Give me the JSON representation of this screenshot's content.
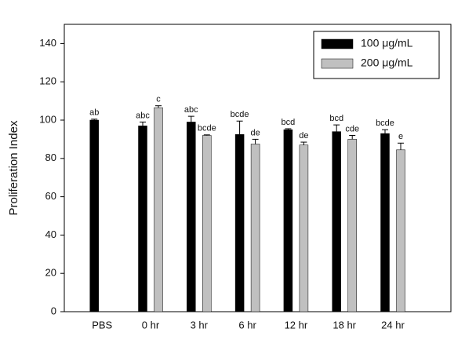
{
  "chart_data": {
    "type": "bar",
    "y_label": "Proliferation Index",
    "categories": [
      "PBS",
      "0 hr",
      "3 hr",
      "6 hr",
      "12 hr",
      "18 hr",
      "24 hr"
    ],
    "series": [
      {
        "name": "100 μg/mL",
        "color": "#000000",
        "values": [
          100,
          97,
          99,
          92.5,
          95,
          94,
          93
        ],
        "errors": [
          0.5,
          2,
          3,
          7,
          0.5,
          3.5,
          2
        ],
        "annotations": [
          "ab",
          "abc",
          "abc",
          "bcde",
          "bcd",
          "bcd",
          "bcde"
        ]
      },
      {
        "name": "200 μg/mL",
        "color": "#c0c0c0",
        "values": [
          null,
          106.5,
          92,
          87.5,
          87,
          90,
          84.5
        ],
        "errors": [
          null,
          1,
          0.3,
          2.5,
          1.5,
          2,
          3.5
        ],
        "annotations": [
          null,
          "c",
          "bcde",
          "de",
          "de",
          "cde",
          "e"
        ]
      }
    ],
    "ylim": [
      0,
      150
    ],
    "yticks": [
      0,
      20,
      40,
      60,
      80,
      100,
      120,
      140
    ],
    "legend": "upper right"
  }
}
